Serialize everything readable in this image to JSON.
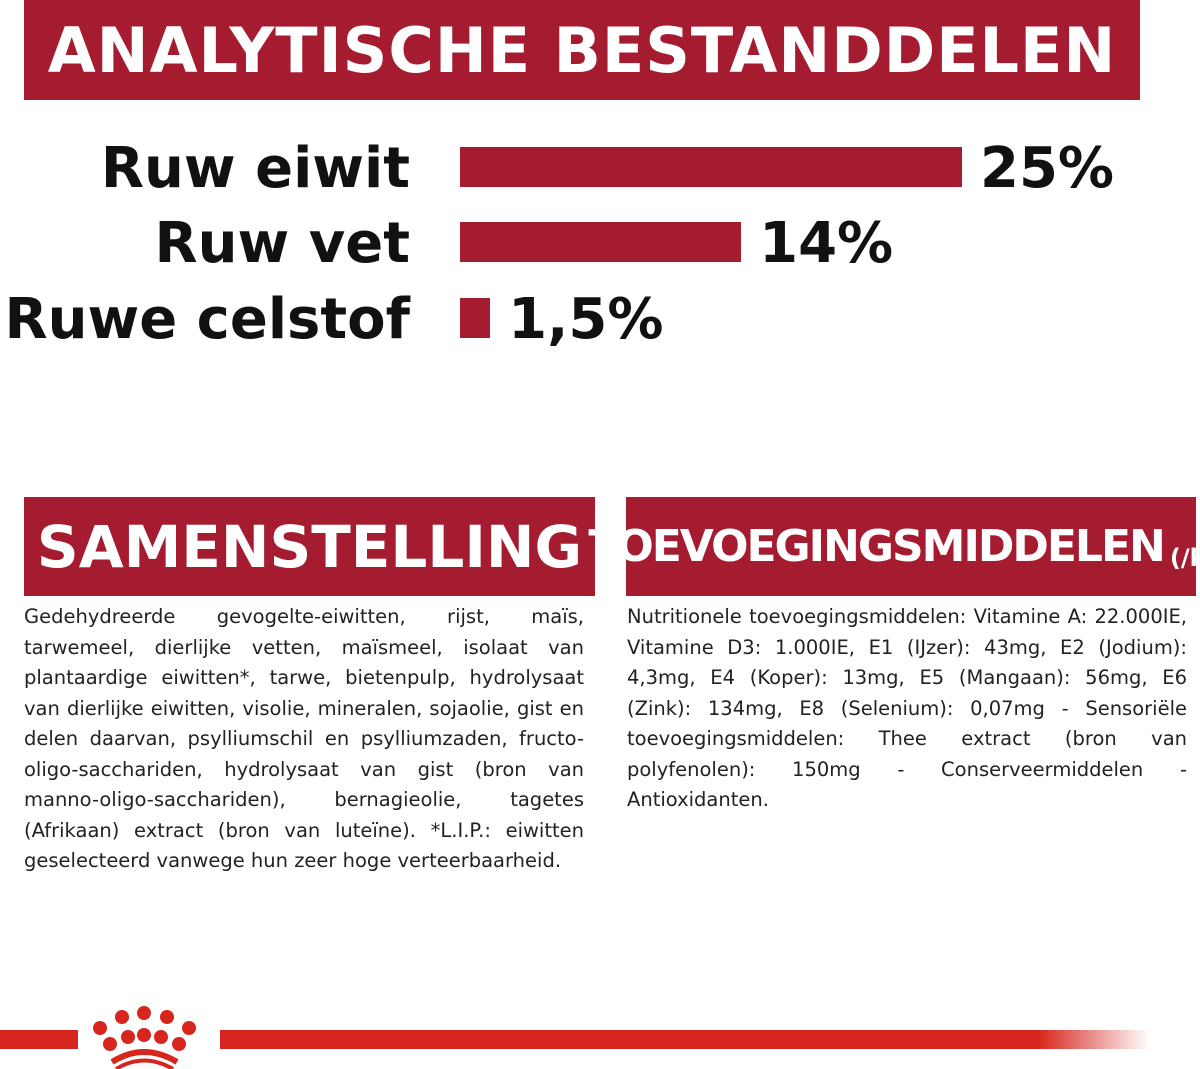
{
  "header": {
    "title": "ANALYTISCHE BESTANDDELEN"
  },
  "chart_data": {
    "type": "bar",
    "orientation": "horizontal",
    "categories": [
      "Ruw eiwit",
      "Ruw vet",
      "Ruwe celstof"
    ],
    "values": [
      25,
      14,
      1.5
    ],
    "value_labels": [
      "25%",
      "14%",
      "1,5%"
    ],
    "unit": "%",
    "color": "#a51c30",
    "grid": false
  },
  "samenstelling": {
    "title": "SAMENSTELLING",
    "text": "Gedehydreerde gevogelte-eiwitten, rijst, maïs, tarwemeel, dierlijke vetten, maïsmeel, isolaat van plantaardige eiwitten*, tarwe, bietenpulp, hydrolysaat van dierlijke eiwitten, visolie, mineralen, sojaolie, gist en delen daarvan, psylliumschil en psylliumzaden, fructo-oligo-sacchariden, hydrolysaat van gist (bron van manno-oligo-sacchariden), bernagieolie, tagetes (Afrikaan) extract (bron van luteïne). *L.I.P.: eiwitten geselecteerd vanwege hun zeer hoge verteerbaarheid."
  },
  "toevoegingsmiddelen": {
    "title": "TOEVOEGINGSMIDDELEN",
    "unit": "(/kg)",
    "text": "Nutritionele toevoegingsmiddelen: Vitamine A: 22.000IE, Vitamine D3: 1.000IE, E1 (IJzer): 43mg, E2 (Jodium): 4,3mg, E4 (Koper): 13mg, E5 (Mangaan): 56mg, E6 (Zink): 134mg, E8 (Selenium): 0,07mg - Sensoriële toevoegingsmiddelen: Thee extract (bron van polyfenolen): 150mg - Conserveermiddelen - Antioxidanten."
  },
  "footer": {
    "logo": "royal-canin-crown-icon",
    "color": "#d7261e"
  }
}
